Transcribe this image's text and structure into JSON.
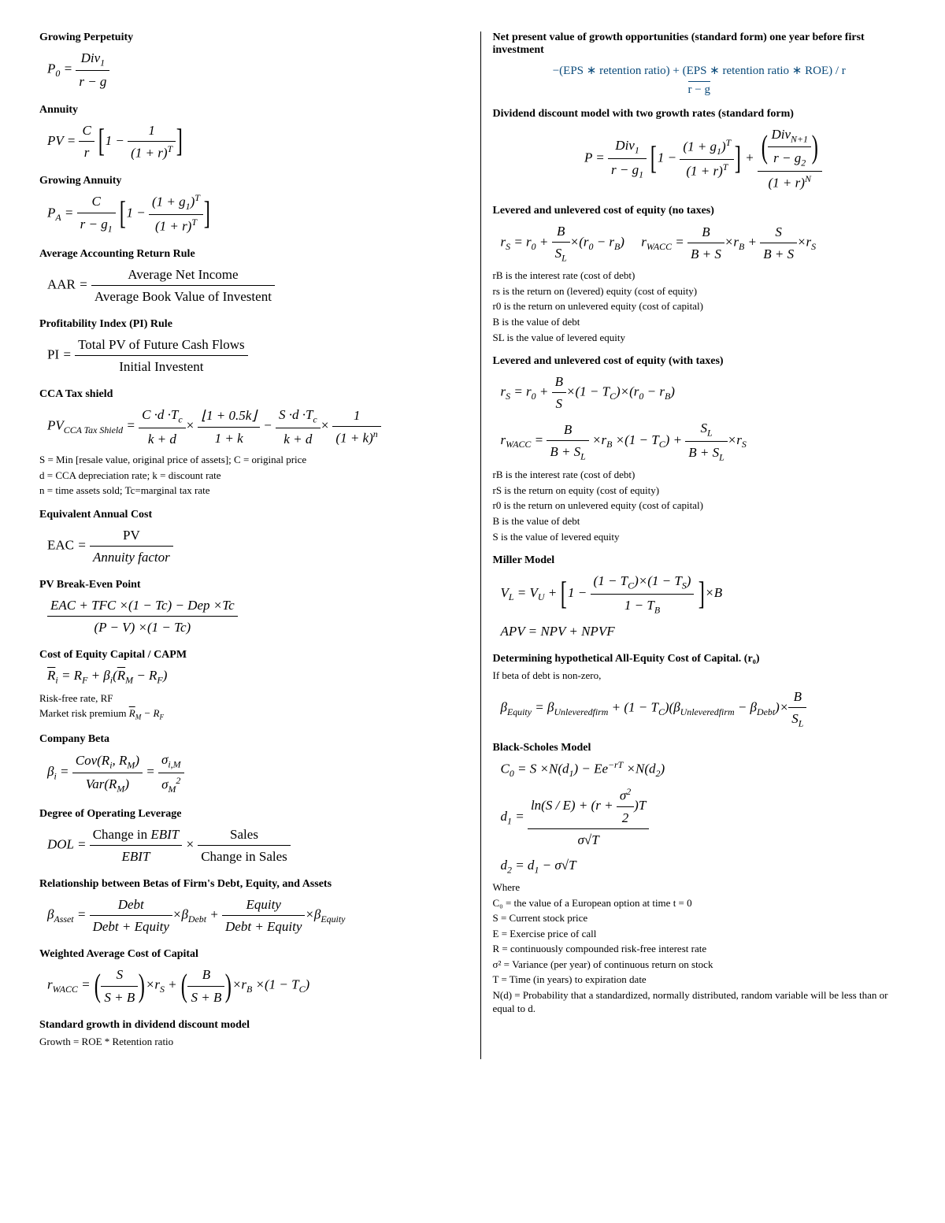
{
  "left": {
    "s1": {
      "title": "Growing Perpetuity",
      "f": "P₀ = Div₁ / (r − g)"
    },
    "s2": {
      "title": "Annuity",
      "f": "PV = C/r [ 1 − 1/(1+r)ᵀ ]"
    },
    "s3": {
      "title": "Growing Annuity",
      "f": "P_A = C/(r−g₁) [ 1 − (1+g₁)ᵀ/(1+r)ᵀ ]"
    },
    "s4": {
      "title": "Average Accounting Return Rule",
      "num": "Average Net Income",
      "den": "Average Book Value of Investent"
    },
    "s5": {
      "title": "Profitability Index (PI) Rule",
      "num": "Total PV of Future Cash Flows",
      "den": "Initial Investent"
    },
    "s6": {
      "title": "CCA Tax shield",
      "n1": "S = Min [resale value, original price of assets]; C = original price",
      "n2": "d = CCA depreciation rate; k = discount rate",
      "n3": "n = time assets sold; Tc=marginal tax rate"
    },
    "s7": {
      "title": "Equivalent Annual Cost",
      "f": "EAC = PV / Annuity factor"
    },
    "s8": {
      "title": "PV Break-Even Point",
      "num": "EAC + TFC ×(1 − Tc) − Dep ×Tc",
      "den": "(P − V) ×(1 − Tc)"
    },
    "s9": {
      "title": "Cost of Equity Capital / CAPM",
      "n1": "Risk-free rate, RF",
      "n2": "Market risk premium "
    },
    "s10": {
      "title": "Company Beta"
    },
    "s11": {
      "title": "Degree of Operating Leverage"
    },
    "s12": {
      "title": "Relationship between Betas of Firm's Debt, Equity, and Assets"
    },
    "s13": {
      "title": "Weighted Average Cost of Capital"
    },
    "s14": {
      "title": "Standard growth in dividend discount model",
      "n1": "Growth = ROE * Retention ratio"
    }
  },
  "right": {
    "s1": {
      "title": "Net present value of growth opportunities (standard form) one year before first investment",
      "num": "−(EPS ∗ retention ratio)  +  (EPS ∗ retention ratio ∗ ROE) / r",
      "den": "r − g"
    },
    "s2": {
      "title": "Dividend discount model with two growth rates (standard form)"
    },
    "s3": {
      "title": "Levered and unlevered cost of equity (no taxes)",
      "n1": "rB is the interest rate (cost of debt)",
      "n2": "rs is the return on (levered) equity (cost of equity)",
      "n3": "r0 is the return on unlevered equity (cost of capital)",
      "n4": "B is the value of debt",
      "n5": "SL is the value of levered equity"
    },
    "s4": {
      "title": "Levered and unlevered cost of equity (with taxes)",
      "n1": "rB is the interest rate (cost of debt)",
      "n2": "rS is the return on equity (cost of equity)",
      "n3": "r0 is the return on unlevered equity (cost of capital)",
      "n4": "B is the value of debt",
      "n5": "S is the value of levered equity"
    },
    "s5": {
      "title": "Miller Model"
    },
    "s6": {
      "title": "Determining hypothetical All-Equity Cost of Capital. (r₀)",
      "n1": "If beta of debt is non-zero,"
    },
    "s7": {
      "title": "Black-Scholes Model",
      "w": "Where",
      "n1": "C₀ = the value of a European option at time t = 0",
      "n2": "S = Current stock price",
      "n3": "E = Exercise price of call",
      "n4": "R = continuously compounded risk-free interest rate",
      "n5": "σ²  = Variance (per year) of continuous return on stock",
      "n6": "T = Time (in years) to expiration date",
      "n7": "N(d) = Probability that a standardized, normally distributed, random variable will be less than or equal to d."
    }
  }
}
